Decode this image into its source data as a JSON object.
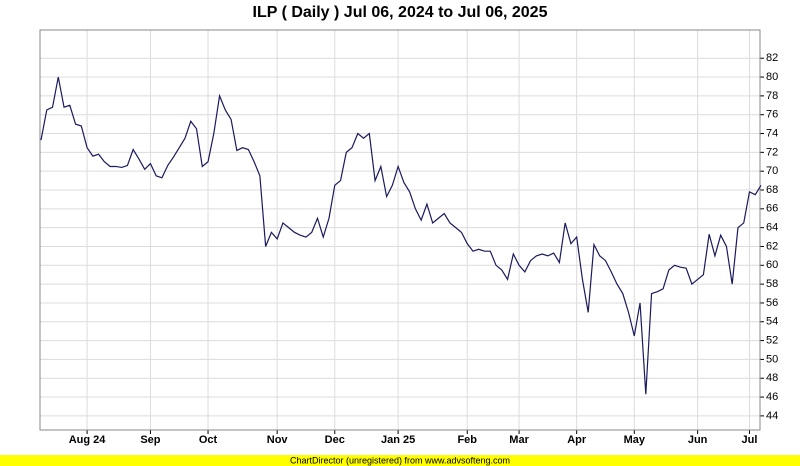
{
  "chart_data": {
    "type": "line",
    "title": "ILP ( Daily ) Jul 06, 2024 to Jul 06, 2025",
    "footer": "ChartDirector (unregistered) from www.advsofteng.com",
    "color": "#1a1a5e",
    "grid": true,
    "ylim": [
      42.5,
      85
    ],
    "yticks": [
      44,
      46,
      48,
      50,
      52,
      54,
      56,
      58,
      60,
      62,
      64,
      66,
      68,
      70,
      72,
      74,
      76,
      78,
      80,
      82
    ],
    "categories": [
      null,
      null,
      null,
      null,
      null,
      null,
      null,
      null,
      "Aug 24",
      null,
      null,
      null,
      null,
      null,
      null,
      null,
      null,
      null,
      null,
      "Sep",
      null,
      null,
      null,
      null,
      null,
      null,
      null,
      null,
      null,
      "Oct",
      null,
      null,
      null,
      null,
      null,
      null,
      null,
      null,
      null,
      null,
      null,
      "Nov",
      null,
      null,
      null,
      null,
      null,
      null,
      null,
      null,
      null,
      "Dec",
      null,
      null,
      null,
      null,
      null,
      null,
      null,
      null,
      null,
      null,
      "Jan 25",
      null,
      null,
      null,
      null,
      null,
      null,
      null,
      null,
      null,
      null,
      null,
      "Feb",
      null,
      null,
      null,
      null,
      null,
      null,
      null,
      null,
      "Mar",
      null,
      null,
      null,
      null,
      null,
      null,
      null,
      null,
      null,
      "Apr",
      null,
      null,
      null,
      null,
      null,
      null,
      null,
      null,
      null,
      "May",
      null,
      null,
      null,
      null,
      null,
      null,
      null,
      null,
      null,
      null,
      "Jun",
      null,
      null,
      null,
      null,
      null,
      null,
      null,
      null,
      "Jul",
      null,
      null
    ],
    "values": [
      73.3,
      76.5,
      76.8,
      80.0,
      76.8,
      77.0,
      75.0,
      74.8,
      72.5,
      71.6,
      71.8,
      71.0,
      70.5,
      70.5,
      70.4,
      70.6,
      72.3,
      71.3,
      70.2,
      70.8,
      69.5,
      69.3,
      70.6,
      71.5,
      72.5,
      73.5,
      75.3,
      74.5,
      70.5,
      71.0,
      74.0,
      78.0,
      76.5,
      75.5,
      72.2,
      72.5,
      72.3,
      71.0,
      69.5,
      62.0,
      63.5,
      62.8,
      64.5,
      64.0,
      63.5,
      63.2,
      63.0,
      63.5,
      65.0,
      63.0,
      65.0,
      68.5,
      69.0,
      72.0,
      72.5,
      74.0,
      73.5,
      74.0,
      69.0,
      70.5,
      67.3,
      68.5,
      70.5,
      68.8,
      67.8,
      66.0,
      64.8,
      66.5,
      64.5,
      65.0,
      65.5,
      64.5,
      64.0,
      63.5,
      62.3,
      61.5,
      61.7,
      61.5,
      61.5,
      60.0,
      59.5,
      58.5,
      61.2,
      60.0,
      59.3,
      60.5,
      61.0,
      61.2,
      61.0,
      61.3,
      60.3,
      64.5,
      62.3,
      63.0,
      58.5,
      55.0,
      62.2,
      61.0,
      60.5,
      59.3,
      58.0,
      57.0,
      55.0,
      52.5,
      56.0,
      46.3,
      57.0,
      57.2,
      57.5,
      59.5,
      60.0,
      59.8,
      59.7,
      58.0,
      58.5,
      59.0,
      63.3,
      61.0,
      63.2,
      62.0,
      58.0,
      64.0,
      64.5,
      67.8,
      67.5,
      68.5
    ]
  }
}
